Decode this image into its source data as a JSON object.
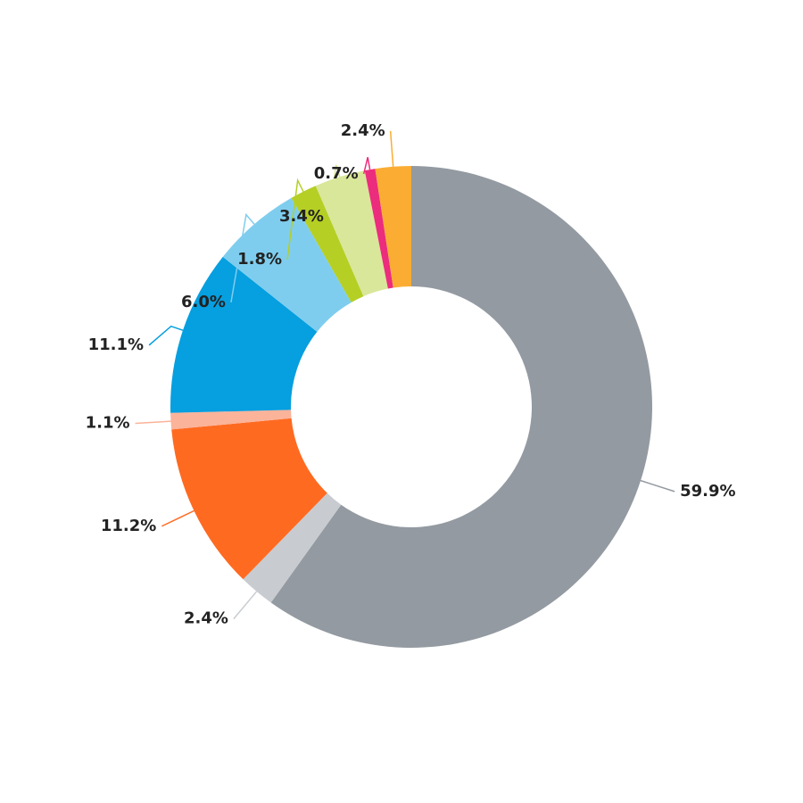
{
  "chart_data": {
    "type": "donut",
    "values": [
      59.9,
      2.4,
      11.2,
      1.1,
      11.1,
      6.0,
      1.8,
      3.4,
      0.7,
      2.4
    ],
    "value_labels": [
      "59.9%",
      "2.4%",
      "11.2%",
      "1.1%",
      "11.1%",
      "6.0%",
      "1.8%",
      "3.4%",
      "0.7%",
      "2.4%"
    ],
    "colors": [
      "#939aa1",
      "#c8ccd0",
      "#ff6a21",
      "#fbb39a",
      "#069fdf",
      "#7fcdee",
      "#b5cf25",
      "#d9e79a",
      "#ec2c7c",
      "#fbad33"
    ]
  }
}
